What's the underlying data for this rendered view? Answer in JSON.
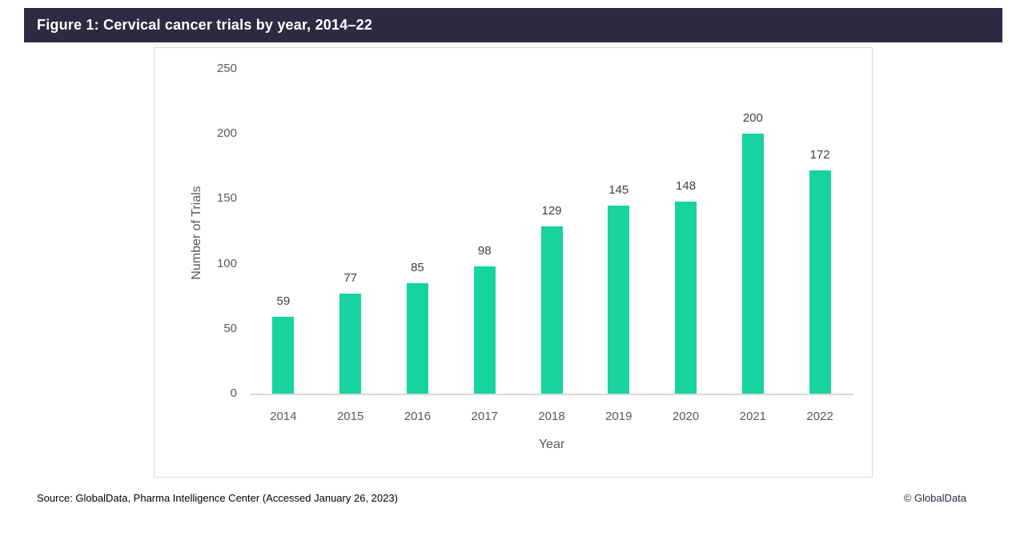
{
  "header": {
    "title": "Figure 1: Cervical cancer trials by year, 2014–22"
  },
  "chart_data": {
    "type": "bar",
    "title": "Figure 1: Cervical cancer trials by year, 2014–22",
    "categories": [
      "2014",
      "2015",
      "2016",
      "2017",
      "2018",
      "2019",
      "2020",
      "2021",
      "2022"
    ],
    "values": [
      59,
      77,
      85,
      98,
      129,
      145,
      148,
      200,
      172
    ],
    "xlabel": "Year",
    "ylabel": "Number of Trials",
    "ylim": [
      0,
      250
    ],
    "yticks": [
      0,
      50,
      100,
      150,
      200,
      250
    ],
    "grid": false,
    "legend": "none",
    "data_labels": true,
    "bar_color": "#16d3a0"
  },
  "footer": {
    "source": "Source: GlobalData, Pharma Intelligence Center (Accessed January 26, 2023)",
    "copyright": "© GlobalData"
  },
  "colors": {
    "header_bg": "#2e2a42",
    "bar": "#16d3a0",
    "axis_line": "#d9d9d9",
    "tick_text": "#595959",
    "label_text": "#404040"
  }
}
